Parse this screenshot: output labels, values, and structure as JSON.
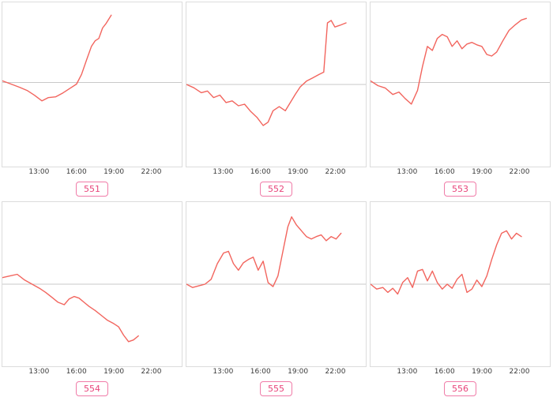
{
  "style": {
    "line_color": "#f2655e",
    "baseline_color": "#c9c9c9",
    "border_color": "#dcdcdc",
    "tick_color": "#3b3b3b",
    "badge_border": "#f07ca8",
    "badge_text": "#e8447a",
    "badge_bg": "#ffffff",
    "background": "#ffffff"
  },
  "chart_data": {
    "type": "line",
    "title": "",
    "xlabel": "",
    "ylabel": "",
    "legend": "none",
    "grid": "horizontal-baseline-only",
    "baseline_y": 0,
    "xlim": [
      10,
      24.5
    ],
    "x_axis": {
      "tick_values": [
        13,
        16,
        19,
        22
      ],
      "tick_labels": [
        "13:00",
        "16:00",
        "19:00",
        "22:00"
      ]
    },
    "charts": [
      {
        "label": "551",
        "ylim": [
          -1.05,
          1.0
        ],
        "x": [
          10.0,
          10.7,
          11.4,
          12.0,
          12.6,
          13.2,
          13.7,
          14.3,
          14.9,
          15.5,
          16.0,
          16.4,
          16.8,
          17.2,
          17.5,
          17.8,
          18.1,
          18.4,
          18.8
        ],
        "y": [
          0.02,
          -0.02,
          -0.06,
          -0.1,
          -0.16,
          -0.23,
          -0.19,
          -0.18,
          -0.13,
          -0.07,
          -0.02,
          0.1,
          0.28,
          0.45,
          0.52,
          0.55,
          0.68,
          0.74,
          0.84
        ]
      },
      {
        "label": "552",
        "ylim": [
          -1.0,
          1.0
        ],
        "x": [
          10.0,
          10.6,
          11.2,
          11.7,
          12.2,
          12.7,
          13.2,
          13.7,
          14.2,
          14.7,
          15.2,
          15.7,
          16.2,
          16.6,
          17.0,
          17.5,
          18.0,
          18.4,
          18.8,
          19.2,
          19.7,
          20.2,
          20.7,
          21.1,
          21.4,
          21.7,
          22.0,
          22.4,
          22.9
        ],
        "y": [
          0.0,
          -0.04,
          -0.1,
          -0.08,
          -0.16,
          -0.13,
          -0.22,
          -0.2,
          -0.26,
          -0.24,
          -0.33,
          -0.4,
          -0.5,
          -0.46,
          -0.32,
          -0.27,
          -0.32,
          -0.22,
          -0.12,
          -0.03,
          0.04,
          0.08,
          0.12,
          0.15,
          0.75,
          0.78,
          0.7,
          0.72,
          0.75
        ]
      },
      {
        "label": "553",
        "ylim": [
          -1.05,
          1.0
        ],
        "x": [
          10.0,
          10.6,
          11.2,
          11.8,
          12.3,
          12.8,
          13.3,
          13.8,
          14.2,
          14.6,
          15.0,
          15.4,
          15.8,
          16.2,
          16.6,
          17.0,
          17.4,
          17.8,
          18.2,
          18.6,
          19.0,
          19.4,
          19.8,
          20.2,
          20.7,
          21.2,
          21.7,
          22.2,
          22.6
        ],
        "y": [
          0.02,
          -0.04,
          -0.07,
          -0.15,
          -0.12,
          -0.2,
          -0.27,
          -0.1,
          0.2,
          0.45,
          0.4,
          0.55,
          0.6,
          0.57,
          0.45,
          0.52,
          0.42,
          0.48,
          0.5,
          0.47,
          0.45,
          0.35,
          0.33,
          0.38,
          0.52,
          0.65,
          0.72,
          0.78,
          0.8
        ]
      },
      {
        "label": "554",
        "ylim": [
          -1.0,
          1.0
        ],
        "x": [
          10.0,
          10.6,
          11.2,
          11.8,
          12.4,
          13.0,
          13.5,
          14.0,
          14.5,
          15.0,
          15.4,
          15.8,
          16.2,
          16.6,
          17.0,
          17.5,
          18.0,
          18.5,
          19.0,
          19.4,
          19.8,
          20.2,
          20.6,
          21.0
        ],
        "y": [
          0.08,
          0.1,
          0.12,
          0.05,
          0.0,
          -0.05,
          -0.1,
          -0.16,
          -0.22,
          -0.25,
          -0.18,
          -0.15,
          -0.17,
          -0.22,
          -0.27,
          -0.32,
          -0.38,
          -0.44,
          -0.48,
          -0.52,
          -0.62,
          -0.7,
          -0.68,
          -0.63
        ]
      },
      {
        "label": "555",
        "ylim": [
          -1.0,
          1.0
        ],
        "x": [
          10.0,
          10.5,
          11.0,
          11.5,
          12.0,
          12.5,
          13.0,
          13.4,
          13.8,
          14.2,
          14.6,
          15.0,
          15.4,
          15.8,
          16.2,
          16.6,
          17.0,
          17.4,
          17.8,
          18.2,
          18.5,
          18.9,
          19.3,
          19.7,
          20.1,
          20.5,
          20.9,
          21.3,
          21.7,
          22.1,
          22.5
        ],
        "y": [
          0.0,
          -0.04,
          -0.02,
          0.0,
          0.06,
          0.25,
          0.38,
          0.4,
          0.25,
          0.17,
          0.26,
          0.3,
          0.33,
          0.17,
          0.28,
          0.02,
          -0.03,
          0.1,
          0.4,
          0.7,
          0.82,
          0.72,
          0.65,
          0.58,
          0.55,
          0.58,
          0.6,
          0.53,
          0.58,
          0.55,
          0.62
        ]
      },
      {
        "label": "556",
        "ylim": [
          -1.0,
          1.0
        ],
        "x": [
          10.0,
          10.5,
          11.0,
          11.4,
          11.8,
          12.2,
          12.6,
          13.0,
          13.4,
          13.8,
          14.2,
          14.6,
          15.0,
          15.4,
          15.8,
          16.2,
          16.6,
          17.0,
          17.4,
          17.8,
          18.2,
          18.6,
          19.0,
          19.4,
          19.8,
          20.2,
          20.6,
          21.0,
          21.4,
          21.8,
          22.2
        ],
        "y": [
          0.0,
          -0.06,
          -0.04,
          -0.1,
          -0.05,
          -0.12,
          0.02,
          0.08,
          -0.04,
          0.16,
          0.18,
          0.04,
          0.16,
          0.02,
          -0.06,
          0.0,
          -0.05,
          0.06,
          0.12,
          -0.1,
          -0.06,
          0.05,
          -0.03,
          0.1,
          0.3,
          0.48,
          0.62,
          0.65,
          0.55,
          0.62,
          0.58
        ]
      }
    ]
  }
}
